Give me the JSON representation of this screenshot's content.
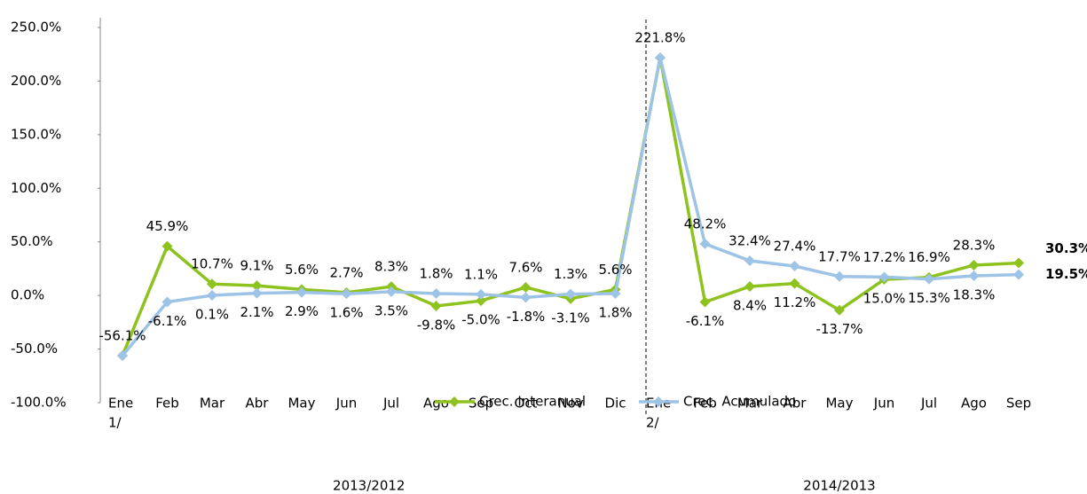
{
  "chart_data": {
    "type": "line",
    "categories": [
      [
        "Ene",
        "1/"
      ],
      "Feb",
      "Mar",
      "Abr",
      "May",
      "Jun",
      "Jul",
      "Ago",
      "Sep",
      "Oct",
      "Nov",
      "Dic",
      [
        "Ene",
        "2/"
      ],
      "Feb",
      "Mar",
      "Abr",
      "May",
      "Jun",
      "Jul",
      "Ago",
      "Sep"
    ],
    "groups": [
      "2013/2012",
      "2014/2013"
    ],
    "ylim": [
      -100,
      250
    ],
    "yticks": [
      {
        "value": -100,
        "label": "-100.0%"
      },
      {
        "value": -50,
        "label": "-50.0%"
      },
      {
        "value": 0,
        "label": "0.0%"
      },
      {
        "value": 50,
        "label": "50.0%"
      },
      {
        "value": 100,
        "label": "100.0%"
      },
      {
        "value": 150,
        "label": "150.0%"
      },
      {
        "value": 200,
        "label": "200.0%"
      },
      {
        "value": 250,
        "label": "250.0%"
      }
    ],
    "series": [
      {
        "name": "Crec. Interanual",
        "color": "#8dc21f",
        "values": [
          -56.1,
          45.9,
          10.7,
          9.1,
          5.6,
          2.7,
          8.3,
          -9.8,
          -5.0,
          7.6,
          -3.1,
          5.6,
          221.8,
          -6.1,
          8.4,
          11.2,
          -13.7,
          15.0,
          16.9,
          28.3,
          30.3
        ],
        "value_labels": [
          "-56.1%",
          "45.9%",
          "10.7%",
          "9.1%",
          "5.6%",
          "2.7%",
          "8.3%",
          "-9.8%",
          "-5.0%",
          "7.6%",
          "-3.1%",
          "5.6%",
          "221.8%",
          "-6.1%",
          "8.4%",
          "11.2%",
          "-13.7%",
          "15.0%",
          "16.9%",
          "28.3%",
          "30.3%"
        ]
      },
      {
        "name": "Crec. Acumulado",
        "color": "#9dc3e6",
        "values": [
          -56.1,
          -6.1,
          0.1,
          2.1,
          2.9,
          1.6,
          3.5,
          1.8,
          1.1,
          -1.8,
          1.3,
          1.8,
          221.8,
          48.2,
          32.4,
          27.4,
          17.7,
          17.2,
          15.3,
          18.3,
          19.5
        ],
        "value_labels": [
          null,
          "-6.1%",
          "0.1%",
          "2.1%",
          "2.9%",
          "1.6%",
          "3.5%",
          "1.8%",
          "1.1%",
          "-1.8%",
          "1.3%",
          "1.8%",
          null,
          "48.2%",
          "32.4%",
          "27.4%",
          "17.7%",
          "17.2%",
          "15.3%",
          "18.3%",
          "19.5%"
        ]
      }
    ]
  }
}
